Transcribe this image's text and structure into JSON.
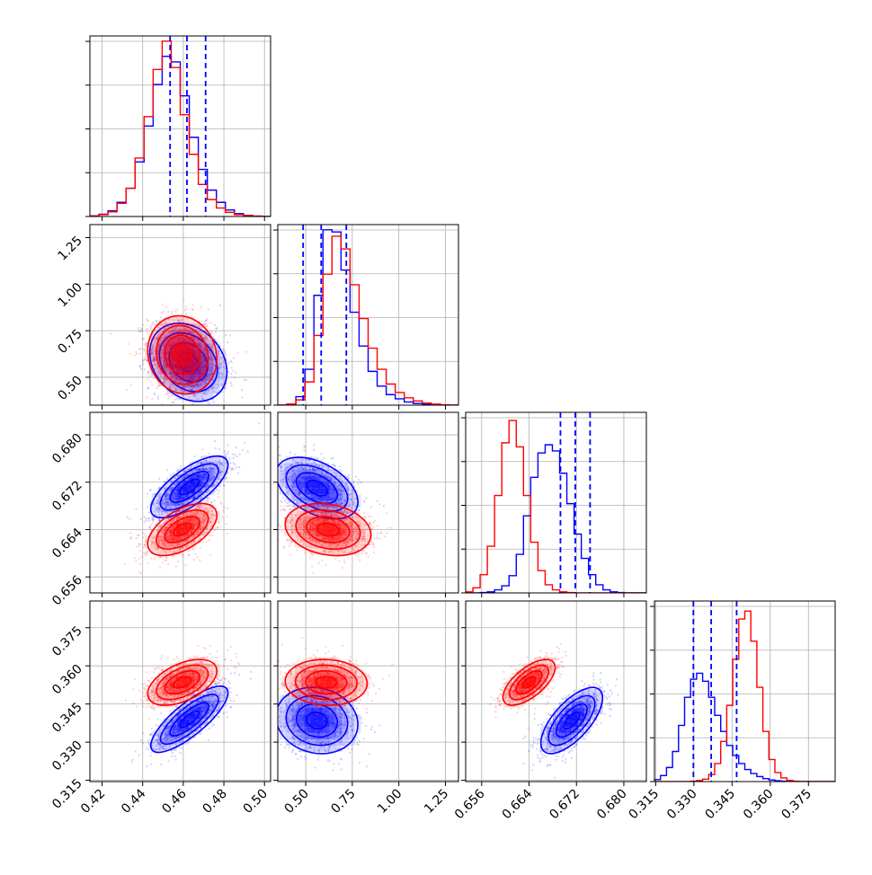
{
  "colors": {
    "red_series": "#ff0000",
    "blue_series": "#0000ff",
    "grid": "#b0b0b0",
    "axes": "#000000"
  },
  "chart_data": {
    "type": "corner",
    "parameters": 4,
    "grid": true,
    "series": [
      {
        "color": "red"
      },
      {
        "color": "blue"
      }
    ],
    "axes": [
      {
        "range": [
          0.414,
          0.503
        ],
        "ticks": [
          0.42,
          0.44,
          0.46,
          0.48,
          0.5
        ],
        "tick_labels": [
          "0.42",
          "0.44",
          "0.46",
          "0.48",
          "0.50"
        ]
      },
      {
        "range": [
          0.35,
          1.32
        ],
        "ticks": [
          0.5,
          0.75,
          1.0,
          1.25
        ],
        "tick_labels": [
          "0.50",
          "0.75",
          "1.00",
          "1.25"
        ]
      },
      {
        "range": [
          0.6533,
          0.6838
        ],
        "ticks": [
          0.656,
          0.664,
          0.672,
          0.68
        ],
        "tick_labels": [
          "0.656",
          "0.664",
          "0.672",
          "0.680"
        ]
      },
      {
        "range": [
          0.3145,
          0.3855
        ],
        "ticks": [
          0.315,
          0.33,
          0.345,
          0.36,
          0.375
        ],
        "tick_labels": [
          "0.315",
          "0.330",
          "0.345",
          "0.360",
          "0.375"
        ]
      }
    ],
    "quantile_lines_blue": [
      [
        0.4535,
        0.4618,
        0.471
      ],
      [
        0.486,
        0.583,
        0.718
      ],
      [
        0.6693,
        0.6718,
        0.6743
      ],
      [
        0.3298,
        0.3368,
        0.3468
      ]
    ],
    "histograms": [
      {
        "edges_range": [
          0.414,
          0.503
        ],
        "bins": 20,
        "red": [
          2,
          10,
          25,
          70,
          150,
          310,
          530,
          780,
          930,
          790,
          540,
          330,
          170,
          90,
          45,
          22,
          10,
          5,
          2,
          0
        ],
        "blue": [
          3,
          12,
          30,
          75,
          150,
          290,
          480,
          700,
          850,
          820,
          640,
          420,
          250,
          140,
          75,
          35,
          15,
          6,
          2,
          0
        ]
      },
      {
        "edges_range": [
          0.35,
          1.32
        ],
        "bins": 20,
        "red": [
          0,
          5,
          25,
          110,
          330,
          620,
          800,
          740,
          570,
          410,
          270,
          170,
          100,
          60,
          35,
          20,
          10,
          5,
          2,
          0
        ],
        "blue": [
          0,
          5,
          40,
          170,
          520,
          830,
          820,
          640,
          440,
          280,
          160,
          90,
          50,
          30,
          15,
          8,
          4,
          2,
          1,
          0
        ]
      },
      {
        "edges_range": [
          0.6533,
          0.6838
        ],
        "bins": 25,
        "red": [
          5,
          25,
          90,
          230,
          480,
          740,
          850,
          720,
          480,
          250,
          110,
          40,
          15,
          5,
          2,
          0,
          0,
          0,
          0,
          0,
          0,
          0,
          0,
          0,
          0
        ],
        "blue": [
          0,
          0,
          2,
          5,
          15,
          35,
          85,
          190,
          380,
          570,
          690,
          730,
          700,
          590,
          440,
          290,
          170,
          90,
          40,
          15,
          5,
          2,
          0,
          0,
          0
        ],
        "ylim": [
          0,
          890
        ]
      },
      {
        "edges_range": [
          0.3145,
          0.3855
        ],
        "bins": 30,
        "red": [
          0,
          0,
          0,
          0,
          0,
          0,
          2,
          5,
          12,
          35,
          90,
          200,
          380,
          610,
          810,
          850,
          700,
          470,
          250,
          110,
          45,
          18,
          6,
          2,
          0,
          0,
          0,
          0,
          0,
          0
        ],
        "blue": [
          10,
          30,
          70,
          150,
          280,
          420,
          510,
          540,
          500,
          420,
          330,
          250,
          180,
          130,
          90,
          60,
          40,
          25,
          15,
          8,
          4,
          2,
          1,
          0,
          0,
          0,
          0,
          0,
          0,
          0
        ],
        "ylim": [
          0,
          900
        ]
      }
    ],
    "distributions": {
      "red": {
        "mean": [
          0.459,
          0.62,
          0.664,
          0.3535
        ],
        "sd": [
          0.0085,
          0.11,
          0.0022,
          0.005
        ]
      },
      "blue": {
        "mean": [
          0.462,
          0.58,
          0.6715,
          0.3385
        ],
        "sd": [
          0.0095,
          0.11,
          0.0028,
          0.0065
        ]
      }
    },
    "pair_panels": [
      {
        "row": 1,
        "col": 0,
        "red": {
          "cx": 0.4595,
          "cy": 0.62,
          "sx": 0.0085,
          "sy": 0.105,
          "rho": -0.1
        },
        "blue": {
          "cx": 0.4625,
          "cy": 0.58,
          "sx": 0.0095,
          "sy": 0.105,
          "rho": -0.25
        }
      },
      {
        "row": 2,
        "col": 0,
        "red": {
          "cx": 0.4595,
          "cy": 0.664,
          "sx": 0.0085,
          "sy": 0.0022,
          "rho": 0.55
        },
        "blue": {
          "cx": 0.463,
          "cy": 0.6712,
          "sx": 0.0095,
          "sy": 0.0026,
          "rho": 0.72
        }
      },
      {
        "row": 2,
        "col": 1,
        "red": {
          "cx": 0.62,
          "cy": 0.664,
          "sx": 0.115,
          "sy": 0.0022,
          "rho": -0.2
        },
        "blue": {
          "cx": 0.56,
          "cy": 0.671,
          "sx": 0.11,
          "sy": 0.0026,
          "rho": -0.45
        }
      },
      {
        "row": 3,
        "col": 0,
        "red": {
          "cx": 0.4595,
          "cy": 0.3535,
          "sx": 0.0085,
          "sy": 0.0045,
          "rho": 0.5
        },
        "blue": {
          "cx": 0.463,
          "cy": 0.339,
          "sx": 0.0095,
          "sy": 0.0065,
          "rho": 0.8
        }
      },
      {
        "row": 3,
        "col": 1,
        "red": {
          "cx": 0.61,
          "cy": 0.3535,
          "sx": 0.11,
          "sy": 0.0045,
          "rho": -0.05
        },
        "blue": {
          "cx": 0.56,
          "cy": 0.3385,
          "sx": 0.11,
          "sy": 0.0065,
          "rho": -0.12
        }
      },
      {
        "row": 3,
        "col": 2,
        "red": {
          "cx": 0.664,
          "cy": 0.3535,
          "sx": 0.0022,
          "sy": 0.0045,
          "rho": 0.65
        },
        "blue": {
          "cx": 0.6712,
          "cy": 0.3385,
          "sx": 0.0026,
          "sy": 0.0065,
          "rho": 0.68
        }
      }
    ]
  }
}
